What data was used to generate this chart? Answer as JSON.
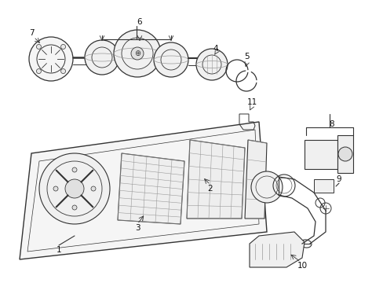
{
  "bg_color": "#ffffff",
  "gray": "#333333",
  "lgray": "#999999",
  "lw": 0.8,
  "fig_w": 4.89,
  "fig_h": 3.6,
  "dpi": 100
}
